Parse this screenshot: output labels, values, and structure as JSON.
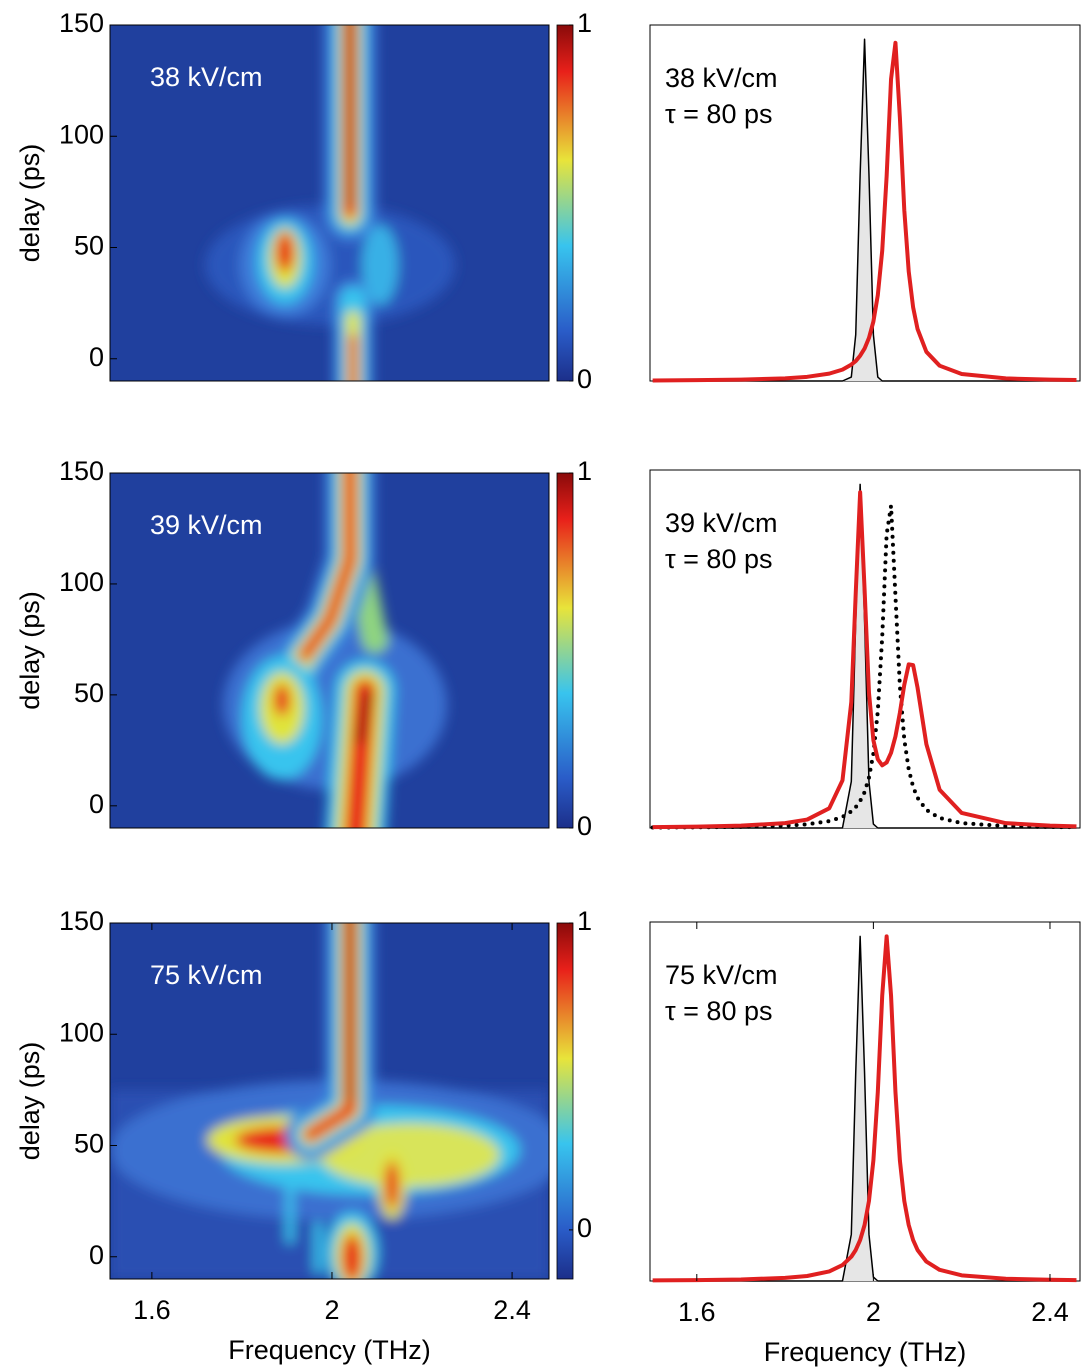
{
  "chart_data": [
    {
      "type": "heatmap",
      "annotation": "38 kV/cm",
      "ylabel": "delay (ps)",
      "xlim": [
        1.507,
        2.482
      ],
      "ylim": [
        -10,
        150
      ],
      "yticks": [
        0,
        50,
        100,
        150
      ],
      "clim": [
        0,
        1
      ],
      "cticks": [
        0,
        1
      ]
    },
    {
      "type": "heatmap",
      "annotation": "39 kV/cm",
      "ylabel": "delay (ps)",
      "xlim": [
        1.507,
        2.482
      ],
      "ylim": [
        -10,
        150
      ],
      "yticks": [
        0,
        50,
        100,
        150
      ],
      "clim": [
        0,
        1
      ],
      "cticks": [
        0,
        1
      ]
    },
    {
      "type": "heatmap",
      "annotation": "75 kV/cm",
      "ylabel": "delay (ps)",
      "xlabel": "Frequency (THz)",
      "xlim": [
        1.507,
        2.482
      ],
      "ylim": [
        -10,
        150
      ],
      "yticks": [
        0,
        50,
        100,
        150
      ],
      "xticks": [
        1.6,
        2,
        2.4
      ],
      "clim": [
        -0.16,
        1
      ],
      "cticks": [
        0,
        1
      ]
    },
    {
      "type": "line",
      "annotations": [
        "38 kV/cm",
        "τ = 80 ps"
      ],
      "xlim": [
        1.494,
        2.468
      ],
      "ylim": [
        0,
        1
      ],
      "x": [
        1.5,
        1.6,
        1.7,
        1.8,
        1.85,
        1.9,
        1.93,
        1.95,
        1.96,
        1.97,
        1.98,
        1.99,
        2.0,
        2.01,
        2.02,
        2.03,
        2.04,
        2.05,
        2.06,
        2.07,
        2.08,
        2.09,
        2.1,
        2.12,
        2.15,
        2.2,
        2.3,
        2.4,
        2.46
      ],
      "series": [
        {
          "color": "#000000",
          "fill": "#e6e6e6",
          "linewidth": 1.5,
          "values": [
            0,
            0,
            0,
            0,
            0,
            0,
            0,
            0.011,
            0.13,
            0.58,
            0.96,
            0.58,
            0.13,
            0.011,
            0,
            0,
            0,
            0,
            0,
            0,
            0,
            0,
            0,
            0,
            0,
            0,
            0,
            0,
            0
          ]
        },
        {
          "color": "#e02020",
          "linewidth": 4,
          "values": [
            0.0015,
            0.0023,
            0.0038,
            0.0075,
            0.0117,
            0.0207,
            0.032,
            0.046,
            0.056,
            0.071,
            0.091,
            0.121,
            0.167,
            0.241,
            0.366,
            0.575,
            0.848,
            0.95,
            0.74,
            0.48,
            0.308,
            0.207,
            0.146,
            0.082,
            0.043,
            0.0197,
            0.0073,
            0.0037,
            0.0027
          ]
        }
      ]
    },
    {
      "type": "line",
      "annotations": [
        "39 kV/cm",
        "τ = 80 ps"
      ],
      "xlim": [
        1.494,
        2.468
      ],
      "ylim": [
        0,
        1
      ],
      "x": [
        1.5,
        1.6,
        1.7,
        1.8,
        1.85,
        1.9,
        1.93,
        1.95,
        1.96,
        1.97,
        1.98,
        1.99,
        2.0,
        2.01,
        2.02,
        2.03,
        2.04,
        2.05,
        2.06,
        2.07,
        2.08,
        2.09,
        2.1,
        2.12,
        2.15,
        2.2,
        2.3,
        2.4,
        2.46
      ],
      "series": [
        {
          "color": "#000000",
          "fill": "#e6e6e6",
          "linewidth": 1.5,
          "values": [
            0,
            0,
            0,
            0,
            0,
            0,
            0,
            0.13,
            0.58,
            0.96,
            0.58,
            0.13,
            0.011,
            0,
            0,
            0,
            0,
            0,
            0,
            0,
            0,
            0,
            0,
            0,
            0,
            0,
            0,
            0,
            0
          ]
        },
        {
          "color": "#000000",
          "style": "dotted",
          "linewidth": 4,
          "values": [
            0.0013,
            0.0019,
            0.0032,
            0.0065,
            0.0104,
            0.0192,
            0.031,
            0.0462,
            0.0582,
            0.0754,
            0.1,
            0.141,
            0.208,
            0.326,
            0.534,
            0.82,
            0.9,
            0.647,
            0.396,
            0.247,
            0.164,
            0.115,
            0.0843,
            0.0505,
            0.028,
            0.0136,
            0.0053,
            0.0028,
            0.0021
          ]
        },
        {
          "color": "#e02020",
          "linewidth": 4,
          "values": [
            0.0025,
            0.0038,
            0.0065,
            0.0137,
            0.0236,
            0.055,
            0.133,
            0.352,
            0.656,
            0.938,
            0.668,
            0.378,
            0.245,
            0.192,
            0.175,
            0.183,
            0.21,
            0.256,
            0.322,
            0.4,
            0.457,
            0.455,
            0.392,
            0.234,
            0.107,
            0.042,
            0.0135,
            0.0066,
            0.0047
          ]
        }
      ]
    },
    {
      "type": "line",
      "annotations": [
        "75 kV/cm",
        "τ = 80 ps"
      ],
      "xlabel": "Frequency (THz)",
      "xlim": [
        1.494,
        2.468
      ],
      "ylim": [
        0,
        1
      ],
      "xticks": [
        1.6,
        2,
        2.4
      ],
      "x": [
        1.5,
        1.6,
        1.7,
        1.8,
        1.85,
        1.9,
        1.93,
        1.95,
        1.96,
        1.97,
        1.98,
        1.99,
        2.0,
        2.01,
        2.02,
        2.03,
        2.04,
        2.05,
        2.06,
        2.07,
        2.08,
        2.09,
        2.1,
        2.12,
        2.15,
        2.2,
        2.3,
        2.4,
        2.46
      ],
      "series": [
        {
          "color": "#000000",
          "fill": "#e6e6e6",
          "linewidth": 1.5,
          "values": [
            0,
            0,
            0,
            0,
            0,
            0,
            0,
            0.13,
            0.58,
            0.96,
            0.58,
            0.13,
            0.011,
            0,
            0,
            0,
            0,
            0,
            0,
            0,
            0,
            0,
            0,
            0,
            0,
            0,
            0,
            0,
            0
          ]
        },
        {
          "color": "#e02020",
          "linewidth": 4,
          "values": [
            0.0017,
            0.0025,
            0.0042,
            0.0087,
            0.0139,
            0.0267,
            0.0443,
            0.0676,
            0.0864,
            0.114,
            0.156,
            0.223,
            0.336,
            0.526,
            0.795,
            0.96,
            0.795,
            0.526,
            0.336,
            0.223,
            0.156,
            0.114,
            0.0864,
            0.054,
            0.031,
            0.0158,
            0.0063,
            0.0034,
            0.0025
          ]
        }
      ]
    }
  ]
}
